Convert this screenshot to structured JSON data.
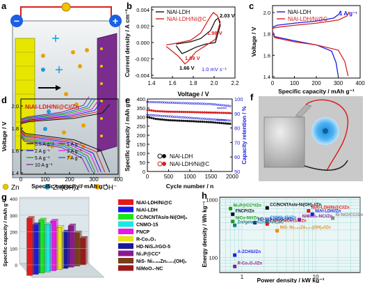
{
  "panel_labels": {
    "a": "a",
    "b": "b",
    "c": "c",
    "d": "d",
    "e": "e",
    "f": "f",
    "g": "g",
    "h": "h"
  },
  "panel_a": {
    "minus": "−",
    "plus": "+",
    "legend": {
      "zn": "Zn",
      "zincate": "Zn(OH)₄²⁻",
      "oh": "OH⁻"
    },
    "colors": {
      "anode": "#e6e600",
      "cathode": "#7a2d8c",
      "electrolyte": "#c8cfd4",
      "wire": "#d62020"
    }
  },
  "chart_data": [
    {
      "panel": "b",
      "type": "line",
      "xlabel": "Voltage / V",
      "ylabel": "Current density / A cm⁻²",
      "xlim": [
        1.35,
        2.2
      ],
      "ylim": [
        -0.0045,
        0.0045
      ],
      "xticks": [
        "1.4",
        "1.6",
        "1.8",
        "2.0",
        "2.2"
      ],
      "yticks": [
        "0.004",
        "0.002",
        "0.000",
        "-0.002",
        "-0.004"
      ],
      "annotations": [
        "1.98 V",
        "2.03 V",
        "1.66 V",
        "1.69 V",
        "1.0 mV s⁻¹"
      ],
      "series": [
        {
          "name": "NiAl-LDH",
          "color": "#111111",
          "x": [
            1.6,
            1.75,
            1.85,
            1.95,
            2.0,
            2.03,
            2.05,
            2.0,
            1.9,
            1.8,
            1.7,
            1.66,
            1.6
          ],
          "y": [
            -0.0002,
            0.0001,
            0.0005,
            0.0015,
            0.0028,
            0.0031,
            0.0022,
            0.0,
            -0.0002,
            -0.0006,
            -0.0012,
            -0.0014,
            -0.0004
          ]
        },
        {
          "name": "NiAl-LDH/Ni@C",
          "color": "#d62020",
          "x": [
            1.5,
            1.6,
            1.75,
            1.85,
            1.95,
            1.98,
            2.02,
            2.05,
            2.0,
            1.9,
            1.8,
            1.72,
            1.69,
            1.62,
            1.5
          ],
          "y": [
            -0.0003,
            -0.0001,
            0.0003,
            0.0012,
            0.0033,
            0.0038,
            0.0034,
            0.0026,
            0.0004,
            -0.0004,
            -0.0012,
            -0.0024,
            -0.0027,
            -0.0017,
            -0.0005
          ]
        }
      ]
    },
    {
      "panel": "c",
      "type": "line",
      "xlabel": "Specific capacity / mAh g⁻¹",
      "ylabel": "Voltage / V",
      "xlim": [
        0,
        400
      ],
      "ylim": [
        1.4,
        2.1
      ],
      "xticks": [
        "0",
        "100",
        "200",
        "300",
        "400"
      ],
      "yticks": [
        "2.0",
        "1.8",
        "1.6",
        "1.4"
      ],
      "annotations": [
        "1 A g⁻¹"
      ],
      "series": [
        {
          "name": "NiAl-LDH",
          "color": "#1a1ae6",
          "x": [
            0,
            20,
            100,
            200,
            280,
            305,
            310
          ],
          "y": [
            1.89,
            1.91,
            1.93,
            1.95,
            1.98,
            2.02,
            2.05
          ]
        },
        {
          "name": "NiAl-LDH/Ni@C",
          "color": "#d62020",
          "x": [
            0,
            20,
            100,
            200,
            300,
            340,
            350
          ],
          "y": [
            1.88,
            1.89,
            1.91,
            1.93,
            1.96,
            2.0,
            2.04
          ]
        },
        {
          "name": "NiAl-LDH discharge",
          "color": "#1a1ae6",
          "x": [
            0,
            10,
            100,
            200,
            270,
            290,
            300
          ],
          "y": [
            1.85,
            1.8,
            1.76,
            1.72,
            1.66,
            1.55,
            1.42
          ]
        },
        {
          "name": "NiAl-LDH/Ni@C discharge",
          "color": "#d62020",
          "x": [
            0,
            10,
            100,
            200,
            300,
            330,
            345
          ],
          "y": [
            1.84,
            1.79,
            1.75,
            1.72,
            1.67,
            1.56,
            1.42
          ]
        }
      ]
    },
    {
      "panel": "d",
      "type": "line",
      "title": "NiAl-LDH/Ni@C//Zn",
      "xlabel": "Specific capacity / mAh g⁻¹",
      "ylabel": "Voltage / V",
      "xlim": [
        0,
        400
      ],
      "ylim": [
        1.4,
        2.1
      ],
      "xticks": [
        "0",
        "100",
        "200",
        "300",
        "400"
      ],
      "yticks": [
        "2.0",
        "1.8",
        "1.6",
        "1.4"
      ],
      "legend": [
        {
          "label": "0.5 A g⁻¹",
          "color": "#111111"
        },
        {
          "label": "1 A g⁻¹",
          "color": "#d62020"
        },
        {
          "label": "2 A g⁻¹",
          "color": "#1a1ae6"
        },
        {
          "label": "3 A g⁻¹",
          "color": "#e619e6"
        },
        {
          "label": "5 A g⁻¹",
          "color": "#1a9c1a"
        },
        {
          "label": "7 A g⁻¹",
          "color": "#1a5fe6"
        },
        {
          "label": "10 A g⁻¹",
          "color": "#7a2d8c"
        }
      ],
      "series_capacity": [
        365,
        345,
        330,
        318,
        305,
        295,
        280
      ]
    },
    {
      "panel": "e",
      "type": "scatter",
      "xlabel": "Cycle number / n",
      "ylabel": "Specific capacity / mAh g⁻¹",
      "ylabel_right": "Capacity retention / %",
      "xlim": [
        0,
        2000
      ],
      "ylim": [
        0,
        400
      ],
      "ylim_right": [
        50,
        100
      ],
      "xticks": [
        "0",
        "500",
        "1000",
        "1500",
        "2000"
      ],
      "yticks": [
        "0",
        "50",
        "100",
        "150",
        "200",
        "250",
        "300",
        "350",
        "400"
      ],
      "yticks_right": [
        "50",
        "60",
        "70",
        "80",
        "90",
        "100"
      ],
      "series": [
        {
          "name": "NiAl-LDH",
          "color": "#111111",
          "x": [
            0,
            200,
            500,
            1000,
            1500,
            2000
          ],
          "y": [
            300,
            290,
            283,
            278,
            272,
            262
          ]
        },
        {
          "name": "NiAl-LDH/Ni@C",
          "color": "#d62020",
          "x": [
            0,
            200,
            500,
            1000,
            1500,
            2000
          ],
          "y": [
            340,
            333,
            330,
            328,
            325,
            322
          ]
        },
        {
          "name": "retention NiAl-LDH",
          "color": "#1a1ae6",
          "x": [
            0,
            500,
            1000,
            1500,
            2000
          ],
          "y": [
            98,
            97.5,
            97,
            96.5,
            95
          ]
        },
        {
          "name": "retention NiAl-LDH/Ni@C",
          "color": "#1a1ae6",
          "x": [
            0,
            500,
            1000,
            1500,
            2000
          ],
          "y": [
            89,
            88,
            87,
            86,
            85
          ]
        }
      ]
    },
    {
      "panel": "g",
      "type": "bar",
      "ylabel": "Specific capacity / mAh g⁻¹",
      "ylim": [
        0,
        400
      ],
      "categories": [
        "NiAl-LDH/Ni@C",
        "NiAl-LDH",
        "CC/NCNTAs/α-Ni(OH)₂",
        "CNMO-15",
        "FNCP",
        "R-Co₃O₄",
        "HD-NiS₂/rGO-5",
        "Ni₃P@CC*",
        "NiS- Ni₀.₉₆Zn₀.₀₄(OH)₂",
        "NiMoO₄-NC"
      ],
      "values": [
        345,
        300,
        320,
        285,
        300,
        255,
        220,
        250,
        200,
        160
      ],
      "colors": [
        "#e61919",
        "#1a1ae6",
        "#19e619",
        "#1ae6e6",
        "#e61ae6",
        "#e6e619",
        "#1a1a99",
        "#8c1a8c",
        "#7a3d1a",
        "#991a1a"
      ]
    },
    {
      "panel": "h",
      "type": "scatter",
      "xlabel": "Power density / kW kg⁻¹",
      "ylabel": "Energy density / Wh kg⁻¹",
      "scale": "log",
      "xticks": [
        "1",
        "10"
      ],
      "yticks": [
        "100",
        "1000"
      ],
      "points": [
        {
          "name": "Ni₃P@CC*//Zn",
          "color": "#1a9c1a",
          "x": 0.7,
          "y": 700
        },
        {
          "name": "CC/NCNTAs/α-Ni(OH)₂//Zn",
          "color": "#111111",
          "x": 2.2,
          "y": 720
        },
        {
          "name": "NiAl-LDH/Ni@C//Zn",
          "color": "#e61919",
          "x": 8,
          "y": 640
        },
        {
          "name": "FNCP//Zn",
          "color": "#111111",
          "x": 0.75,
          "y": 560
        },
        {
          "name": "NiCo-50//Zn",
          "color": "#1a9c1a",
          "x": 0.75,
          "y": 420
        },
        {
          "name": "HD-NiS₂/rGO-5//Zn",
          "color": "#1a1a99",
          "x": 1.5,
          "y": 400
        },
        {
          "name": "CNMO-15//Zn",
          "color": "#1a7fe6",
          "x": 2.2,
          "y": 430
        },
        {
          "name": "CNF@NiCo₂S₄//Zn",
          "color": "#e61919",
          "x": 2.2,
          "y": 380
        },
        {
          "name": "NiMoO₄-NC//Zn",
          "color": "#8c1a8c",
          "x": 6,
          "y": 450
        },
        {
          "name": "NiAl-LDH//Zn",
          "color": "#1a1ae6",
          "x": 9,
          "y": 560
        },
        {
          "name": "Ni-NiO/CC//Zn",
          "color": "#888888",
          "x": 17,
          "y": 480
        },
        {
          "name": "Zn//gelatin/ZnSO₄//LDC",
          "color": "#1a7f7f",
          "x": 0.8,
          "y": 360
        },
        {
          "name": "NiS- Ni₀.₉₆Zn₀.₀₄(OH)₂//Zn",
          "color": "#e68c1a",
          "x": 3,
          "y": 290
        },
        {
          "name": "A-ZCHS//Zn",
          "color": "#1a1ae6",
          "x": 0.8,
          "y": 110
        },
        {
          "name": "R-Co₃O₄//Zn",
          "color": "#8c1a8c",
          "x": 0.8,
          "y": 70
        }
      ]
    }
  ]
}
